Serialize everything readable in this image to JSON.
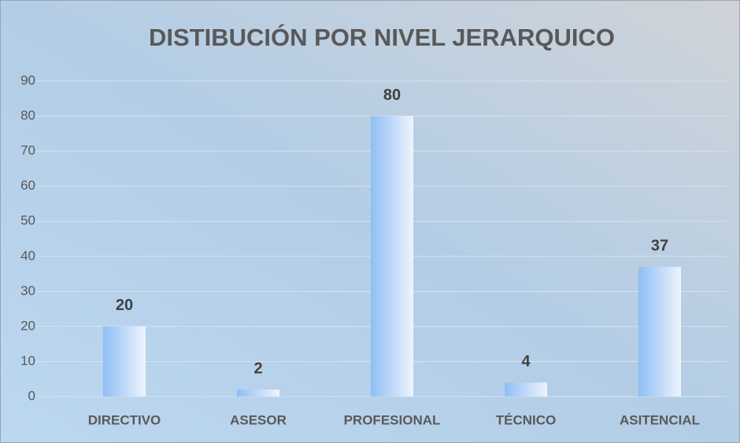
{
  "chart_data": {
    "type": "bar",
    "title": "DISTIBUCIÓN POR NIVEL JERARQUICO",
    "categories": [
      "DIRECTIVO",
      "ASESOR",
      "PROFESIONAL",
      "TÉCNICO",
      "ASITENCIAL"
    ],
    "values": [
      20,
      2,
      80,
      4,
      37
    ],
    "color": "#8fbef5",
    "ylim": [
      0,
      90
    ],
    "yticks": [
      0,
      10,
      20,
      30,
      40,
      50,
      60,
      70,
      80,
      90
    ],
    "grid": true
  }
}
